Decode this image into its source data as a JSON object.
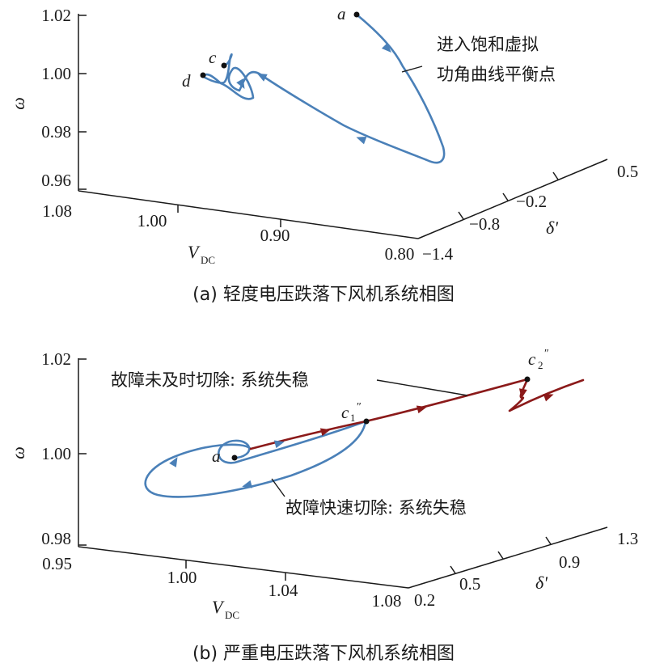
{
  "chart_data": [
    {
      "type": "line3d",
      "caption": "(a) 轻度电压跌落下风机系统相图",
      "axes": {
        "z": {
          "label": "ω",
          "ticks": [
            "1.02",
            "1.00",
            "0.98",
            "0.96"
          ]
        },
        "x": {
          "label": "V",
          "label_sub": "DC",
          "ticks": [
            "1.08",
            "1.00",
            "0.90",
            "0.80"
          ]
        },
        "y": {
          "label": "δ'",
          "ticks": [
            "−1.4",
            "−0.8",
            "−0.2",
            "0.5"
          ]
        }
      },
      "series": [
        {
          "color": "#4a80b8"
        }
      ],
      "points": [
        {
          "label": "a"
        },
        {
          "label": "c"
        },
        {
          "label": "d"
        }
      ],
      "annotations": [
        {
          "text_lines": [
            "进入饱和虚拟",
            "功角曲线平衡点"
          ]
        }
      ]
    },
    {
      "type": "line3d",
      "caption": "(b) 严重电压跌落下风机系统相图",
      "axes": {
        "z": {
          "label": "ω",
          "ticks": [
            "1.02",
            "1.00",
            "0.98"
          ]
        },
        "x": {
          "label": "V",
          "label_sub": "DC",
          "ticks": [
            "0.95",
            "1.00",
            "1.04",
            "1.08"
          ]
        },
        "y": {
          "label": "δ'",
          "ticks": [
            "0.2",
            "0.5",
            "0.9",
            "1.3"
          ]
        }
      },
      "series": [
        {
          "color": "#4a80b8"
        },
        {
          "color": "#8b1a1a"
        }
      ],
      "points": [
        {
          "label": "a"
        },
        {
          "label": "c",
          "sub": "1",
          "sup": "″"
        },
        {
          "label": "c",
          "sub": "2",
          "sup": "″"
        }
      ],
      "annotations": [
        {
          "text": "故障未及时切除: 系统失稳"
        },
        {
          "text": "故障快速切除: 系统失稳"
        }
      ]
    }
  ]
}
